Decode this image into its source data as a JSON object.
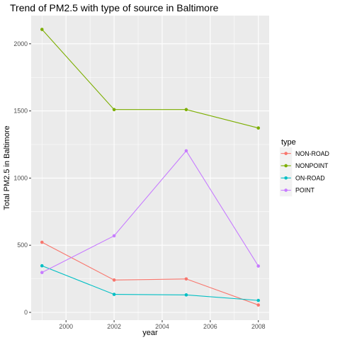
{
  "chart_data": {
    "type": "line",
    "title": "Trend of PM2.5 with type of source in Baltimore",
    "xlabel": "year",
    "ylabel": "Total PM2.5 in Baltimore",
    "x": [
      1999,
      2002,
      2005,
      2008
    ],
    "xlim": [
      1998.55,
      2008.45
    ],
    "ylim": [
      -58,
      2210
    ],
    "xticks": [
      2000,
      2002,
      2004,
      2006,
      2008
    ],
    "yticks": [
      0,
      500,
      1000,
      1500,
      2000
    ],
    "xtick_labels": [
      "2000",
      "2002",
      "2004",
      "2006",
      "2008"
    ],
    "ytick_labels": [
      "0",
      "500",
      "1000",
      "1500",
      "2000"
    ],
    "grid": true,
    "legend": {
      "title": "type",
      "position": "right"
    },
    "series": [
      {
        "name": "NON-ROAD",
        "color": "#F8766D",
        "values": [
          522,
          241,
          249,
          55
        ]
      },
      {
        "name": "NONPOINT",
        "color": "#7CAE00",
        "values": [
          2107,
          1510,
          1510,
          1373
        ]
      },
      {
        "name": "ON-ROAD",
        "color": "#00BFC4",
        "values": [
          347,
          134,
          130,
          89
        ]
      },
      {
        "name": "POINT",
        "color": "#C77CFF",
        "values": [
          297,
          570,
          1203,
          345
        ]
      }
    ]
  }
}
